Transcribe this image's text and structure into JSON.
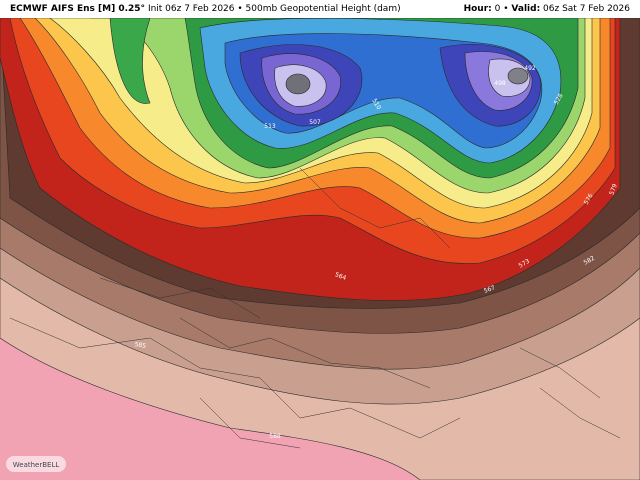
{
  "header": {
    "title": "ECMWF AIFS Ens [M] 0.25°",
    "subtitle": "Init 06z 7 Feb 2026 • 500mb Geopotential Height (dam)",
    "hour_label": "Hour:",
    "hour_value": "0 •",
    "valid_label": "Valid:",
    "valid_value": "06z Sat 7 Feb 2026"
  },
  "map": {
    "contour_labels": [
      "564",
      "567",
      "573",
      "582",
      "585",
      "588",
      "576",
      "579",
      "507",
      "513",
      "510",
      "498",
      "492",
      "528"
    ]
  },
  "logo": {
    "text": "WeatherBELL"
  }
}
